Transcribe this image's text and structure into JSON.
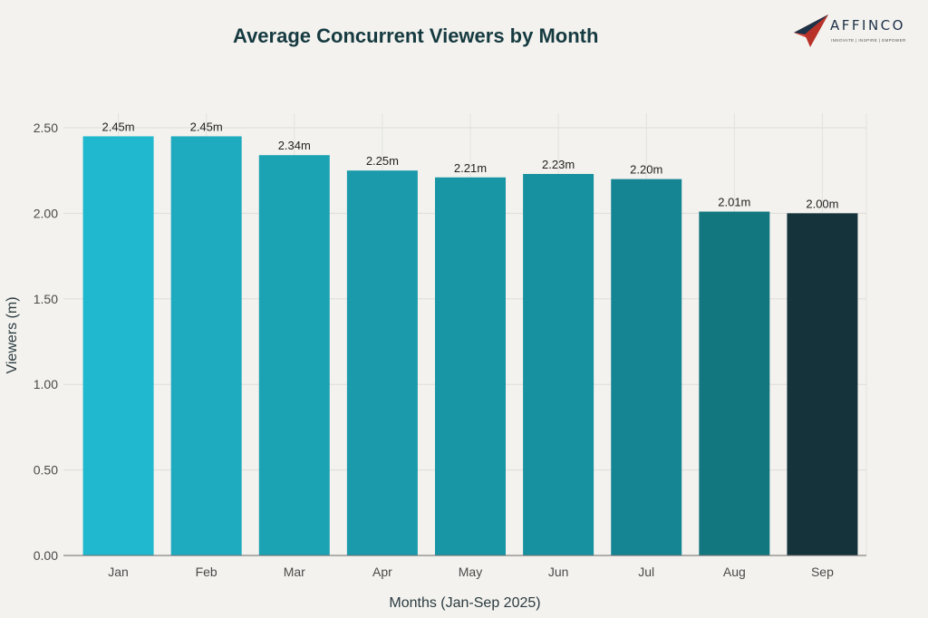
{
  "chart_data": {
    "type": "bar",
    "title": "Average Concurrent Viewers by Month",
    "xlabel": "Months (Jan-Sep 2025)",
    "ylabel": "Viewers (m)",
    "categories": [
      "Jan",
      "Feb",
      "Mar",
      "Apr",
      "May",
      "Jun",
      "Jul",
      "Aug",
      "Sep"
    ],
    "values": [
      2.45,
      2.45,
      2.34,
      2.25,
      2.21,
      2.23,
      2.2,
      2.01,
      2.0
    ],
    "value_labels": [
      "2.45m",
      "2.45m",
      "2.34m",
      "2.25m",
      "2.21m",
      "2.23m",
      "2.20m",
      "2.01m",
      "2.00m"
    ],
    "yticks": [
      "0.00",
      "0.50",
      "1.00",
      "1.50",
      "2.00",
      "2.50"
    ],
    "ylim": [
      0,
      2.5
    ],
    "grid": true,
    "colors": [
      "#1fb8ce",
      "#1eabbf",
      "#1ca3b3",
      "#1a9aab",
      "#1896a5",
      "#17919f",
      "#158593",
      "#137780",
      "#14333b"
    ]
  },
  "logo": {
    "name": "AFFINCO",
    "tagline": "INNOVATE | INSPIRE | EMPOWER"
  }
}
